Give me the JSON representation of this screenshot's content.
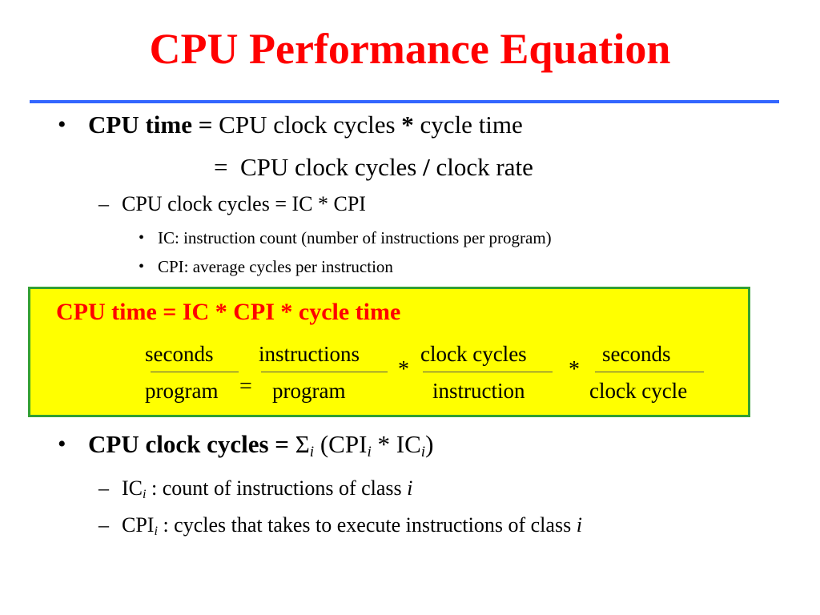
{
  "title": "CPU Performance Equation",
  "bullet1": {
    "term": "CPU time",
    "eq": "=",
    "rest1": "CPU clock cycles",
    "op1": "*",
    "rest2": "cycle time"
  },
  "bullet1_line2": {
    "eq": "=",
    "rest1": "CPU clock cycles",
    "op": "/",
    "rest2": "clock rate"
  },
  "sub1": "CPU clock cycles = IC * CPI",
  "subsub1": "IC: instruction count (number of instructions per program)",
  "subsub2": "CPI: average cycles per instruction",
  "highlight": {
    "title": "CPU time = IC * CPI * cycle time",
    "fractions": [
      {
        "num": "seconds",
        "den": "program"
      },
      {
        "num": "instructions",
        "den": "program"
      },
      {
        "num": "clock cycles",
        "den": "instruction"
      },
      {
        "num": "seconds",
        "den": "clock cycle"
      }
    ],
    "eq": "=",
    "times": "*"
  },
  "bullet2": {
    "term": "CPU clock cycles",
    "eq": "=",
    "sigma": "Σ",
    "i": "i",
    "open": "(CPI",
    "mid": " * IC",
    "close": ")"
  },
  "sub2": {
    "prefix": "IC",
    "i": "i",
    "text": " : count of instructions of class ",
    "var": "i"
  },
  "sub3": {
    "prefix": "CPI",
    "i": "i",
    "text": " : cycles that takes to execute instructions of class ",
    "var": "i"
  }
}
